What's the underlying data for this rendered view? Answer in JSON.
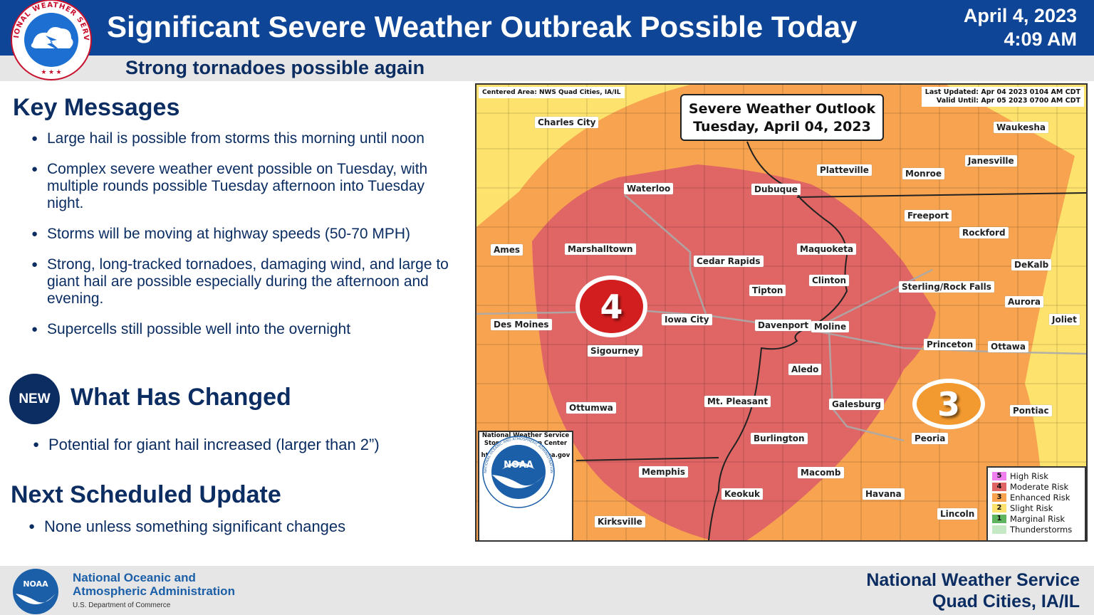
{
  "header": {
    "title": "Significant Severe Weather Outbreak Possible Today",
    "date": "April 4, 2023",
    "time": "4:09 AM",
    "subtitle": "Strong tornadoes possible again",
    "logo_text": "NATIONAL WEATHER SERVICE"
  },
  "key_messages": {
    "heading": "Key Messages",
    "items": [
      "Large hail is possible from storms this morning until noon",
      "Complex severe weather event possible on Tuesday, with multiple rounds possible Tuesday afternoon into Tuesday night.",
      "Storms will be moving at highway speeds (50-70 MPH)",
      "Strong, long-tracked tornadoes, damaging wind, and large to giant hail are possible especially during the afternoon and evening.",
      "Supercells still possible well into the overnight"
    ]
  },
  "what_changed": {
    "badge": "NEW",
    "heading": "What Has Changed",
    "items": [
      "Potential for giant hail increased (larger than 2”)"
    ]
  },
  "next_update": {
    "heading": "Next Scheduled Update",
    "items": [
      "None unless something significant changes"
    ]
  },
  "map": {
    "centered_area": "Centered Area: NWS Quad Cities, IA/IL",
    "last_updated": "Last Updated: Apr 04 2023 0104 AM CDT",
    "valid_until": "Valid Until: Apr 05 2023 0700 AM CDT",
    "title_line1": "Severe Weather Outlook",
    "title_line2": "Tuesday, April 04, 2023",
    "risk_high_label": "4",
    "risk_enh_label": "3",
    "colors": {
      "moderate": "#e06666",
      "enhanced": "#f7a350",
      "slight": "#fde36d",
      "marginal": "#5fb45f",
      "thunder": "#c5e8c5",
      "high": "#f080f0"
    },
    "cities": [
      "Charles City",
      "Waukesha",
      "Platteville",
      "Janesville",
      "Monroe",
      "Waterloo",
      "Dubuque",
      "Freeport",
      "Rockford",
      "Ames",
      "Marshalltown",
      "Maquoketa",
      "Cedar Rapids",
      "DeKalb",
      "Clinton",
      "Tipton",
      "Sterling/Rock Falls",
      "Aurora",
      "Iowa City",
      "Des Moines",
      "Joliet",
      "Davenport",
      "Moline",
      "Princeton",
      "Ottawa",
      "Sigourney",
      "Aledo",
      "Mt. Pleasant",
      "Galesburg",
      "Pontiac",
      "Ottumwa",
      "Burlington",
      "Peoria",
      "Memphis",
      "Macomb",
      "Keokuk",
      "Havana",
      "Lincoln",
      "Kirksville"
    ],
    "legend": [
      {
        "num": "5",
        "label": "High Risk",
        "color": "#f080f0"
      },
      {
        "num": "4",
        "label": "Moderate Risk",
        "color": "#e06666"
      },
      {
        "num": "3",
        "label": "Enhanced Risk",
        "color": "#f7a350"
      },
      {
        "num": "2",
        "label": "Slight Risk",
        "color": "#fde36d"
      },
      {
        "num": "1",
        "label": "Marginal Risk",
        "color": "#5fb45f"
      },
      {
        "num": "",
        "label": "Thunderstorms",
        "color": "#c5e8c5"
      }
    ],
    "noaa_box_line1": "National Weather Service",
    "noaa_box_line2": "Storm Prediction Center",
    "noaa_box_url": "https://www.spc.noaa.gov",
    "noaa_logo_text": "NOAA",
    "noaa_ring_text": "NATIONAL OCEANIC AND ATMOSPHERIC ADMINISTRATION"
  },
  "footer": {
    "noaa_line1": "National Oceanic and",
    "noaa_line2": "Atmospheric Administration",
    "noaa_line3": "U.S. Department of Commerce",
    "nws_line1": "National Weather Service",
    "nws_line2": "Quad Cities, IA/IL",
    "logo_text": "NOAA"
  }
}
